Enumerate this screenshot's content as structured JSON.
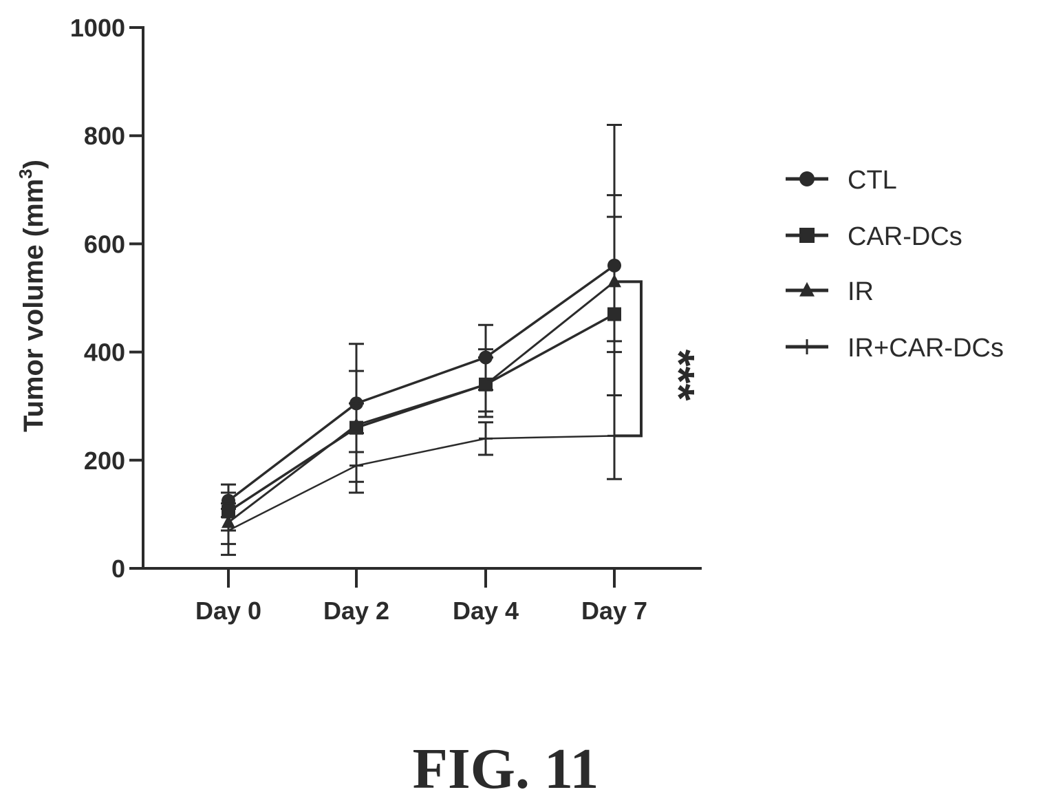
{
  "chart_data": {
    "type": "line",
    "title": "",
    "xlabel": "",
    "ylabel": "Tumor volume (mm",
    "ylabel_superscript": "3",
    "ylabel_close": ")",
    "categories": [
      "Day 0",
      "Day 2",
      "Day 4",
      "Day 7"
    ],
    "ylim": [
      0,
      1000
    ],
    "yticks": [
      0,
      200,
      400,
      600,
      800,
      1000
    ],
    "ytick_labels": [
      "0",
      "200",
      "400",
      "600",
      "800",
      "1000"
    ],
    "grid": false,
    "legend_position": "right",
    "series": [
      {
        "name": "CTL",
        "marker": "circle",
        "values": [
          125,
          305,
          390,
          560
        ],
        "err_low": [
          95,
          250,
          330,
          420
        ],
        "err_high": [
          155,
          415,
          450,
          820
        ]
      },
      {
        "name": "CAR-DCs",
        "marker": "square",
        "values": [
          105,
          260,
          340,
          470
        ],
        "err_low": [
          70,
          215,
          290,
          320
        ],
        "err_high": [
          140,
          305,
          390,
          690
        ]
      },
      {
        "name": "IR",
        "marker": "triangle",
        "values": [
          85,
          265,
          340,
          530
        ],
        "err_low": [
          45,
          160,
          280,
          400
        ],
        "err_high": [
          120,
          365,
          405,
          650
        ]
      },
      {
        "name": "IR+CAR-DCs",
        "marker": "cross",
        "values": [
          70,
          190,
          240,
          245
        ],
        "err_low": [
          25,
          140,
          210,
          165
        ],
        "err_high": [
          110,
          250,
          270,
          320
        ]
      }
    ],
    "annotations": [
      {
        "text": "***",
        "between_series": [
          "IR",
          "IR+CAR-DCs"
        ],
        "at": "Day 7"
      }
    ]
  },
  "caption": "FIG. 11",
  "colors": {
    "ink": "#2b2b2b",
    "background": "#ffffff"
  }
}
